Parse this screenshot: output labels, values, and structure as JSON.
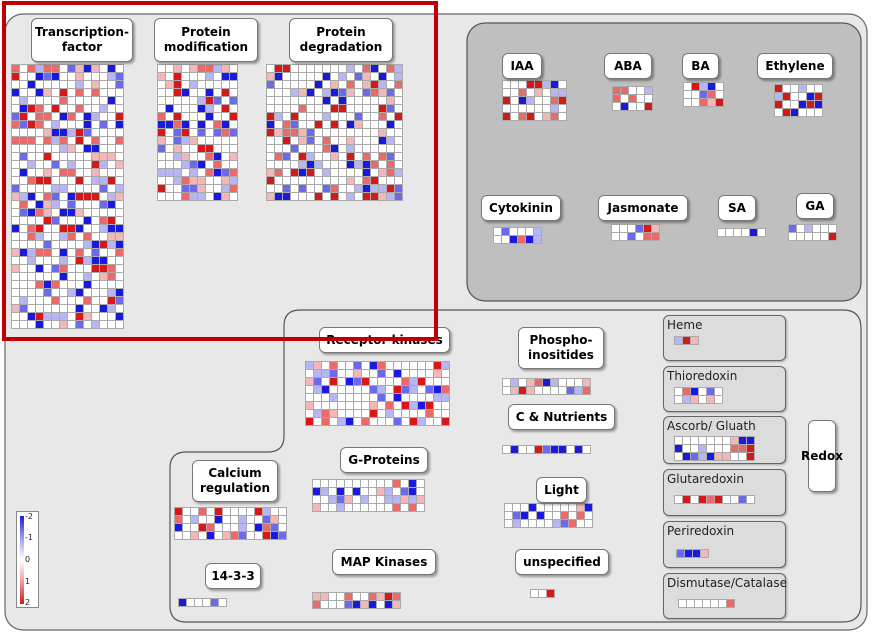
{
  "title": "",
  "labels": {
    "transcription_factor": "Transcription-\nfactor",
    "protein_modification": "Protein\nmodification",
    "protein_degradation": "Protein\ndegradation",
    "iaa": "IAA",
    "aba": "ABA",
    "ba": "BA",
    "ethylene": "Ethylene",
    "cytokinin": "Cytokinin",
    "jasmonate": "Jasmonate",
    "sa": "SA",
    "ga": "GA",
    "receptor_kinases": "Receptor kinases",
    "phosphoinositides": "Phospho-\ninositides",
    "c_nutrients": "C & Nutrients",
    "light": "Light",
    "unspecified": "unspecified",
    "g_proteins": "G-Proteins",
    "calcium_regulation": "Calcium\nregulation",
    "map_kinases": "MAP Kinases",
    "fourteen_3_3": "14-3-3",
    "redox": "Redox"
  },
  "redox_items": [
    "Heme",
    "Thioredoxin",
    "Ascorb/ Gluath",
    "Glutaredoxin",
    "Periredoxin",
    "Dismutase/Catalase"
  ],
  "legend": {
    "ticks": [
      "-2",
      "-1",
      "0",
      "1",
      "2"
    ],
    "color_low": "#1a1adf",
    "color_mid": "#ffffff",
    "color_high": "#d81818"
  },
  "colors": {
    "background": "#ffffff",
    "outer_panel": "#e8e8e8",
    "hormone_panel": "#bfbfbf",
    "signalling_panel": "#e8e8e8",
    "highlight_border": "#c00000",
    "cell_border": "#aaaaaa"
  },
  "highlight": "red rectangle around Transcription-factor, Protein modification and Protein degradation"
}
